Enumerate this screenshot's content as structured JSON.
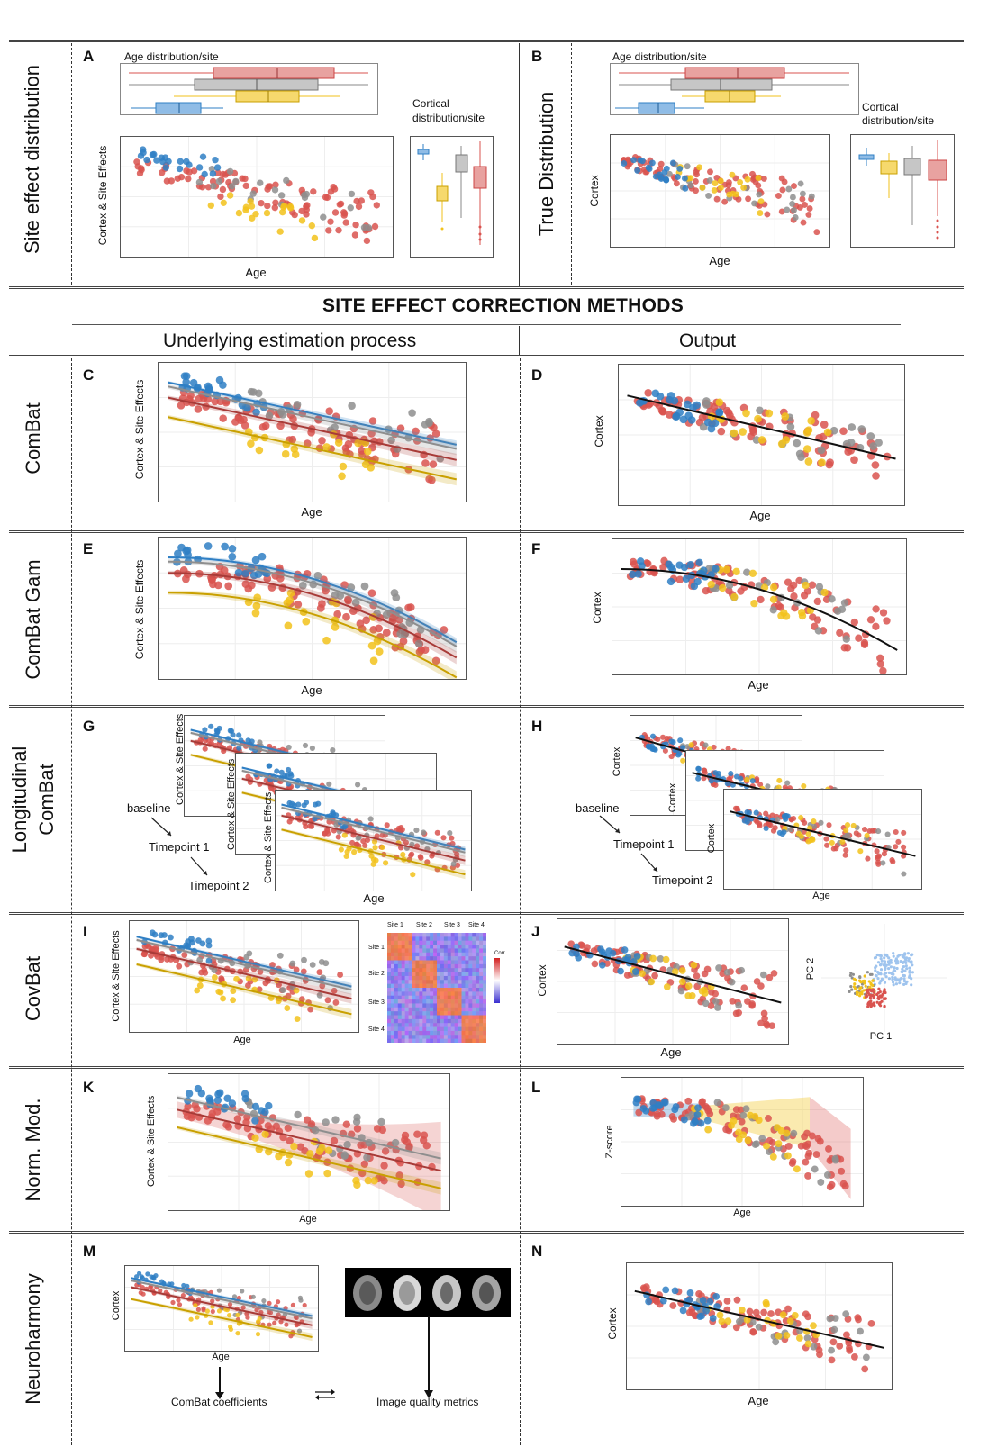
{
  "rows": {
    "site_effect": "Site effect distribution",
    "true_distribution": "True Distribution",
    "combat": "ComBat",
    "combat_gam": "ComBat Gam",
    "long_combat_1": "Longitudinal",
    "long_combat_2": "ComBat",
    "covbat": "CovBat",
    "norm_mod": "Norm. Mod.",
    "neuroharmony": "Neuroharmony"
  },
  "panels": {
    "A": "A",
    "B": "B",
    "C": "C",
    "D": "D",
    "E": "E",
    "F": "F",
    "G": "G",
    "H": "H",
    "I": "I",
    "J": "J",
    "K": "K",
    "L": "L",
    "M": "M",
    "N": "N"
  },
  "titles": {
    "section": "SITE EFFECT CORRECTION METHODS",
    "left_col": "Underlying estimation process",
    "right_col": "Output"
  },
  "labels": {
    "age_dist": "Age distribution/site",
    "cortical_dist_1": "Cortical",
    "cortical_dist_2": "distribution/site",
    "age": "Age",
    "cortex": "Cortex",
    "cortex_site": "Cortex & Site Effects",
    "zscore": "Z-score",
    "baseline": "baseline",
    "tp1": "Timepoint 1",
    "tp2": "Timepoint 2",
    "pc1": "PC 1",
    "pc2": "PC 2",
    "combat_coef": "ComBat coefficients",
    "iqm": "Image quality metrics",
    "site1": "Site 1",
    "site2": "Site 2",
    "site3": "Site 3",
    "site4": "Site 4",
    "corr": "Corr"
  },
  "colors": {
    "blue": "#2f7fc4",
    "yellow": "#f2c21b",
    "grey": "#8e8e8e",
    "red": "#d9534f"
  }
}
